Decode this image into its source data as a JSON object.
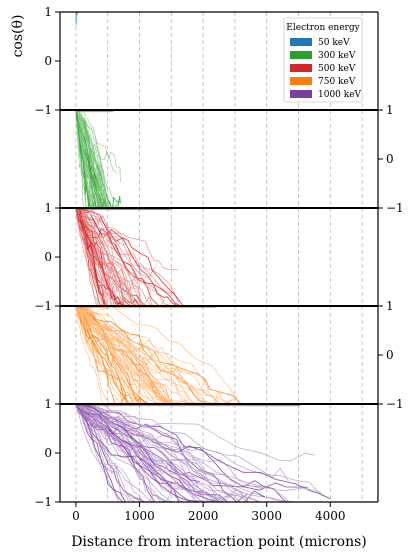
{
  "chart_data": {
    "type": "line",
    "title": "",
    "xlabel": "Distance from interaction point (microns)",
    "ylabel": "cos(θ)",
    "xlim": [
      -250,
      4750
    ],
    "ylim": [
      -1,
      1
    ],
    "x_ticks": [
      0,
      1000,
      2000,
      3000,
      4000
    ],
    "x_tick_labels": [
      "0",
      "1000",
      "2000",
      "3000",
      "4000"
    ],
    "y_ticks": [
      1,
      0,
      -1
    ],
    "y_tick_labels": [
      "1",
      "0",
      "−1"
    ],
    "vertical_gridlines": [
      0,
      500,
      1000,
      1500,
      2000,
      2500,
      3000,
      3500,
      4000,
      4500
    ],
    "grid": "vertical dashed",
    "legend_title": "Electron energy",
    "legend_position": "top-right",
    "series": [
      {
        "name": "50 keV",
        "color": "#1f77b4",
        "max_distance": 45,
        "y_axis_side": "left"
      },
      {
        "name": "300 keV",
        "color": "#2ca02c",
        "max_distance": 700,
        "y_axis_side": "right"
      },
      {
        "name": "500 keV",
        "color": "#d62728",
        "max_distance": 1750,
        "y_axis_side": "left"
      },
      {
        "name": "750 keV",
        "color": "#ff7f0e",
        "max_distance": 2600,
        "y_axis_side": "right"
      },
      {
        "name": "1000 keV",
        "color": "#7b3fa0",
        "max_distance": 4150,
        "y_axis_side": "left"
      }
    ]
  }
}
